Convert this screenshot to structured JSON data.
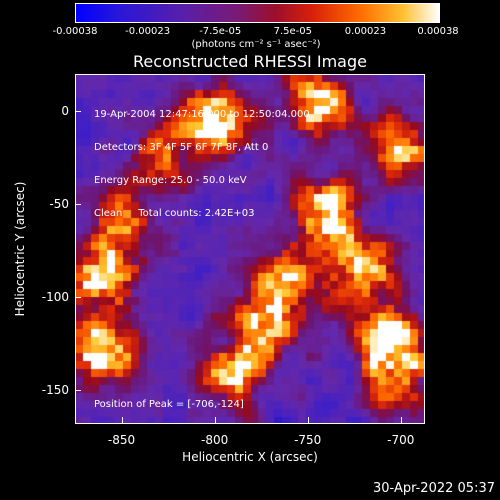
{
  "colorbar": {
    "ticks": [
      "-0.00038",
      "-0.00023",
      "-7.5e-05",
      "7.5e-05",
      "0.00023",
      "0.00038"
    ],
    "unit_label": "(photons cm⁻² s⁻¹ asec⁻²)"
  },
  "chart_data": {
    "type": "heatmap",
    "title": "Reconstructed RHESSI Image",
    "xlabel": "Heliocentric X (arcsec)",
    "ylabel": "Heliocentric Y (arcsec)",
    "xlim": [
      -875,
      -687
    ],
    "ylim": [
      -168,
      20
    ],
    "x_ticks": [
      -850,
      -800,
      -750,
      -700
    ],
    "y_ticks": [
      0,
      -50,
      -100,
      -150
    ],
    "colorbar_range": [
      -0.00038,
      0.00038
    ],
    "colormap": "blue-purple-red-yellow-white",
    "peak": [
      -706,
      -124
    ],
    "bright_regions": [
      {
        "x": -800,
        "y": -5,
        "level": 1.0
      },
      {
        "x": -706,
        "y": -124,
        "level": 1.0
      },
      {
        "x": -860,
        "y": -90,
        "level": 0.85
      },
      {
        "x": -860,
        "y": -130,
        "level": 0.9
      },
      {
        "x": -740,
        "y": -55,
        "level": 0.85
      },
      {
        "x": -720,
        "y": -85,
        "level": 0.8
      },
      {
        "x": -775,
        "y": -115,
        "level": 0.75
      },
      {
        "x": -745,
        "y": 5,
        "level": 0.8
      },
      {
        "x": -700,
        "y": -20,
        "level": 0.7
      },
      {
        "x": -850,
        "y": -60,
        "level": 0.6
      },
      {
        "x": -790,
        "y": -140,
        "level": 0.7
      },
      {
        "x": -830,
        "y": -25,
        "level": 0.55
      },
      {
        "x": -760,
        "y": -90,
        "level": 0.65
      },
      {
        "x": -700,
        "y": -150,
        "level": 0.45
      }
    ],
    "annotations": [
      "19-Apr-2004 12:47:16.000 to 12:50:04.000",
      "Detectors: 3F 4F 5F 6F 7F 8F, Att 0",
      "Energy Range: 25.0 - 50.0 keV",
      "Clean     Total counts: 2.42E+03"
    ],
    "peak_label": "Position of Peak = [-706,-124]"
  },
  "footer": {
    "timestamp": "30-Apr-2022 05:37"
  }
}
